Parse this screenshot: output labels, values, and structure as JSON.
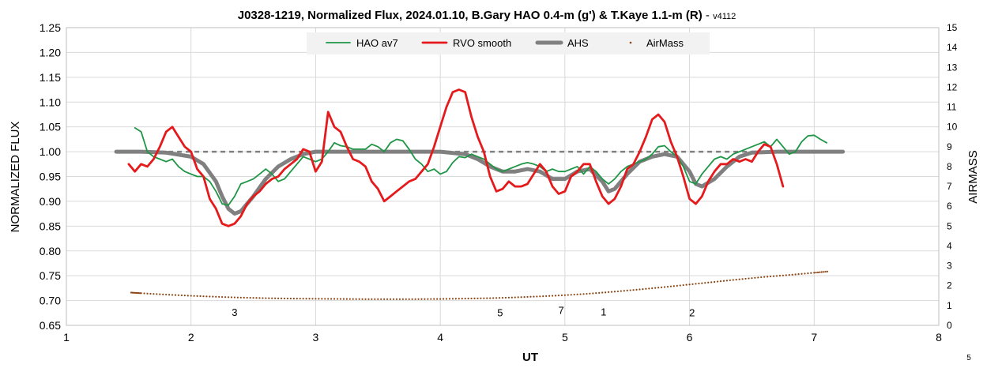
{
  "chart_data": {
    "type": "line",
    "title": "J0328-1219, Normalized Flux, 2024.01.10, B.Gary HAO 0.4-m (g') & T.Kaye 1.1-m (R)",
    "title_suffix": " - ",
    "version": "v4112",
    "xlabel": "UT",
    "ylabel": "NORMALIZED FLUX",
    "y2label": "AIRMASS",
    "xlim": [
      1,
      8
    ],
    "ylim": [
      0.65,
      1.25
    ],
    "y2lim": [
      0,
      15
    ],
    "x_ticks": [
      "1",
      "2",
      "3",
      "4",
      "5",
      "6",
      "7",
      "8"
    ],
    "y_ticks": [
      "0.65",
      "0.70",
      "0.75",
      "0.80",
      "0.85",
      "0.90",
      "0.95",
      "1.00",
      "1.05",
      "1.10",
      "1.15",
      "1.20",
      "1.25"
    ],
    "y2_ticks": [
      "0",
      "1",
      "2",
      "3",
      "4",
      "5",
      "6",
      "7",
      "8",
      "9",
      "10",
      "11",
      "12",
      "13",
      "14",
      "15"
    ],
    "grid": true,
    "legend_position": "top-center",
    "reference_line": {
      "y": 1.0,
      "style": "dashed",
      "color": "#808080"
    },
    "annotations": [
      {
        "text": "3",
        "x": 2.35,
        "y": 0.677
      },
      {
        "text": "5",
        "x": 4.48,
        "y": 0.676
      },
      {
        "text": "7",
        "x": 4.97,
        "y": 0.681
      },
      {
        "text": "1",
        "x": 5.31,
        "y": 0.678
      },
      {
        "text": "2",
        "x": 6.02,
        "y": 0.676
      }
    ],
    "corner_note": "5",
    "series": [
      {
        "name": "HAO av7",
        "color": "#1e9646",
        "axis": "left",
        "x": [
          1.55,
          1.6,
          1.65,
          1.7,
          1.75,
          1.8,
          1.85,
          1.9,
          1.95,
          2.0,
          2.05,
          2.1,
          2.15,
          2.2,
          2.25,
          2.3,
          2.35,
          2.4,
          2.45,
          2.5,
          2.55,
          2.6,
          2.65,
          2.7,
          2.75,
          2.8,
          2.85,
          2.9,
          2.95,
          3.0,
          3.05,
          3.1,
          3.15,
          3.2,
          3.25,
          3.3,
          3.35,
          3.4,
          3.45,
          3.5,
          3.55,
          3.6,
          3.65,
          3.7,
          3.75,
          3.8,
          3.85,
          3.9,
          3.95,
          4.0,
          4.05,
          4.1,
          4.15,
          4.2,
          4.25,
          4.3,
          4.35,
          4.4,
          4.45,
          4.5,
          4.55,
          4.6,
          4.65,
          4.7,
          4.75,
          4.8,
          4.85,
          4.9,
          4.95,
          5.0,
          5.05,
          5.1,
          5.15,
          5.2,
          5.25,
          5.3,
          5.35,
          5.4,
          5.45,
          5.5,
          5.55,
          5.6,
          5.65,
          5.7,
          5.75,
          5.8,
          5.85,
          5.9,
          5.95,
          6.0,
          6.05,
          6.1,
          6.15,
          6.2,
          6.25,
          6.3,
          6.35,
          6.4,
          6.45,
          6.5,
          6.55,
          6.6,
          6.65,
          6.7,
          6.75,
          6.8,
          6.85,
          6.9,
          6.95,
          7.0,
          7.05,
          7.1
        ],
        "y": [
          1.048,
          1.04,
          1.0,
          0.99,
          0.985,
          0.98,
          0.985,
          0.97,
          0.96,
          0.955,
          0.95,
          0.95,
          0.94,
          0.92,
          0.895,
          0.892,
          0.91,
          0.935,
          0.94,
          0.945,
          0.955,
          0.965,
          0.955,
          0.94,
          0.945,
          0.96,
          0.975,
          0.99,
          0.985,
          0.98,
          0.985,
          1.0,
          1.018,
          1.012,
          1.01,
          1.005,
          1.005,
          1.005,
          1.015,
          1.01,
          1.0,
          1.018,
          1.025,
          1.022,
          1.005,
          0.985,
          0.975,
          0.96,
          0.965,
          0.955,
          0.96,
          0.978,
          0.99,
          0.988,
          0.995,
          0.99,
          0.985,
          0.975,
          0.965,
          0.96,
          0.965,
          0.97,
          0.975,
          0.978,
          0.975,
          0.97,
          0.96,
          0.965,
          0.96,
          0.96,
          0.965,
          0.97,
          0.955,
          0.97,
          0.96,
          0.945,
          0.935,
          0.945,
          0.96,
          0.97,
          0.975,
          0.98,
          0.985,
          0.995,
          1.01,
          1.012,
          1.0,
          0.99,
          0.97,
          0.94,
          0.935,
          0.955,
          0.97,
          0.985,
          0.99,
          0.985,
          0.995,
          1.0,
          1.005,
          1.01,
          1.015,
          1.02,
          1.01,
          1.025,
          1.01,
          0.995,
          1.0,
          1.02,
          1.032,
          1.033,
          1.025,
          1.018
        ]
      },
      {
        "name": "RVO smooth",
        "color": "#e41a1c",
        "axis": "left",
        "x": [
          1.5,
          1.55,
          1.6,
          1.65,
          1.7,
          1.75,
          1.8,
          1.85,
          1.9,
          1.95,
          2.0,
          2.05,
          2.1,
          2.15,
          2.2,
          2.25,
          2.3,
          2.35,
          2.4,
          2.45,
          2.5,
          2.55,
          2.6,
          2.65,
          2.7,
          2.75,
          2.8,
          2.85,
          2.9,
          2.95,
          3.0,
          3.05,
          3.1,
          3.15,
          3.2,
          3.25,
          3.3,
          3.35,
          3.4,
          3.45,
          3.5,
          3.55,
          3.6,
          3.65,
          3.7,
          3.75,
          3.8,
          3.85,
          3.9,
          3.95,
          4.0,
          4.05,
          4.1,
          4.15,
          4.2,
          4.25,
          4.3,
          4.35,
          4.4,
          4.45,
          4.5,
          4.55,
          4.6,
          4.65,
          4.7,
          4.75,
          4.8,
          4.85,
          4.9,
          4.95,
          5.0,
          5.05,
          5.1,
          5.15,
          5.2,
          5.25,
          5.3,
          5.35,
          5.4,
          5.45,
          5.5,
          5.55,
          5.6,
          5.65,
          5.7,
          5.75,
          5.8,
          5.85,
          5.9,
          5.95,
          6.0,
          6.05,
          6.1,
          6.15,
          6.2,
          6.25,
          6.3,
          6.35,
          6.4,
          6.45,
          6.5,
          6.55,
          6.6,
          6.65,
          6.7,
          6.75
        ],
        "y": [
          0.975,
          0.96,
          0.975,
          0.97,
          0.985,
          1.01,
          1.04,
          1.05,
          1.03,
          1.01,
          1.0,
          0.965,
          0.95,
          0.905,
          0.885,
          0.855,
          0.85,
          0.855,
          0.87,
          0.895,
          0.91,
          0.92,
          0.935,
          0.945,
          0.95,
          0.965,
          0.975,
          0.985,
          1.005,
          1.0,
          0.96,
          0.98,
          1.08,
          1.05,
          1.04,
          1.01,
          0.985,
          0.98,
          0.97,
          0.94,
          0.925,
          0.9,
          0.91,
          0.92,
          0.93,
          0.94,
          0.945,
          0.96,
          0.975,
          1.01,
          1.05,
          1.09,
          1.12,
          1.125,
          1.12,
          1.07,
          1.03,
          1.0,
          0.95,
          0.92,
          0.925,
          0.94,
          0.93,
          0.93,
          0.935,
          0.955,
          0.975,
          0.96,
          0.93,
          0.915,
          0.92,
          0.95,
          0.96,
          0.975,
          0.975,
          0.94,
          0.91,
          0.895,
          0.905,
          0.93,
          0.965,
          0.975,
          1.0,
          1.03,
          1.065,
          1.075,
          1.06,
          1.02,
          0.99,
          0.95,
          0.905,
          0.895,
          0.91,
          0.94,
          0.96,
          0.975,
          0.975,
          0.985,
          0.98,
          0.985,
          0.98,
          1.0,
          1.015,
          1.01,
          0.975,
          0.93
        ]
      },
      {
        "name": "AHS",
        "color": "#808080",
        "axis": "left",
        "x": [
          1.4,
          1.6,
          1.8,
          2.0,
          2.1,
          2.2,
          2.25,
          2.3,
          2.35,
          2.4,
          2.5,
          2.6,
          2.7,
          2.8,
          2.9,
          3.0,
          3.2,
          3.4,
          3.6,
          3.8,
          4.0,
          4.2,
          4.3,
          4.4,
          4.5,
          4.6,
          4.7,
          4.8,
          4.9,
          5.0,
          5.1,
          5.2,
          5.3,
          5.35,
          5.4,
          5.5,
          5.6,
          5.7,
          5.8,
          5.9,
          6.0,
          6.05,
          6.1,
          6.2,
          6.3,
          6.4,
          6.5,
          6.7,
          6.9,
          7.1,
          7.23
        ],
        "y": [
          1.0,
          1.0,
          0.998,
          0.99,
          0.975,
          0.94,
          0.91,
          0.885,
          0.875,
          0.88,
          0.91,
          0.945,
          0.97,
          0.985,
          0.995,
          1.0,
          1.0,
          1.0,
          1.0,
          1.0,
          1.0,
          0.995,
          0.985,
          0.97,
          0.96,
          0.96,
          0.965,
          0.96,
          0.945,
          0.945,
          0.96,
          0.965,
          0.94,
          0.92,
          0.925,
          0.955,
          0.98,
          0.99,
          0.995,
          0.99,
          0.96,
          0.935,
          0.93,
          0.945,
          0.97,
          0.99,
          0.998,
          1.0,
          1.0,
          1.0,
          1.0
        ]
      },
      {
        "name": "AirMass",
        "color": "#8b4513",
        "axis": "right",
        "x": [
          1.52,
          1.6,
          1.8,
          2.0,
          2.2,
          2.4,
          2.6,
          2.8,
          3.0,
          3.2,
          3.4,
          3.6,
          3.8,
          4.0,
          4.2,
          4.4,
          4.6,
          4.8,
          5.0,
          5.2,
          5.4,
          5.6,
          5.8,
          6.0,
          6.2,
          6.4,
          6.6,
          6.8,
          7.0,
          7.12
        ],
        "y": [
          1.65,
          1.62,
          1.55,
          1.49,
          1.44,
          1.4,
          1.37,
          1.35,
          1.34,
          1.33,
          1.32,
          1.32,
          1.32,
          1.33,
          1.35,
          1.37,
          1.41,
          1.46,
          1.52,
          1.6,
          1.7,
          1.81,
          1.93,
          2.06,
          2.19,
          2.32,
          2.44,
          2.54,
          2.65,
          2.72
        ]
      }
    ]
  }
}
